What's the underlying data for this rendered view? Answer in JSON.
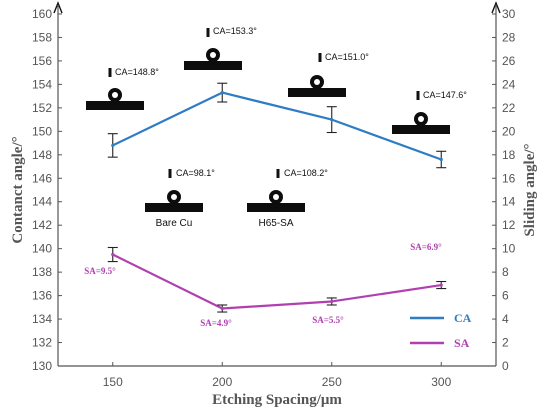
{
  "chart_data": {
    "type": "line",
    "x": [
      150,
      200,
      250,
      300
    ],
    "xlabel": "Etching Spacing/μm",
    "ylabel_left": "Contanct angle/°",
    "ylabel_right": "Sliding angle/°",
    "xlim": [
      125,
      325
    ],
    "ylim_left": [
      130,
      160
    ],
    "ylim_right": [
      0,
      30
    ],
    "yticks_left": [
      130,
      132,
      134,
      136,
      138,
      140,
      142,
      144,
      146,
      148,
      150,
      152,
      154,
      156,
      158,
      160
    ],
    "yticks_right": [
      0,
      2,
      4,
      6,
      8,
      10,
      12,
      14,
      16,
      18,
      20,
      22,
      24,
      26,
      28,
      30
    ],
    "xticks": [
      150,
      200,
      250,
      300
    ],
    "grid": false,
    "legend_position": "bottom-right",
    "series": [
      {
        "name": "CA",
        "axis": "left",
        "color": "#2e7cc4",
        "values": [
          148.8,
          153.3,
          151.0,
          147.6
        ],
        "error": [
          1.0,
          0.8,
          1.1,
          0.7
        ],
        "labels": [
          "CA=148.8°",
          "CA=153.3°",
          "CA=151.0°",
          "CA=147.6°"
        ]
      },
      {
        "name": "SA",
        "axis": "right",
        "color": "#b040b0",
        "values": [
          9.5,
          4.9,
          5.5,
          6.9
        ],
        "error": [
          0.6,
          0.3,
          0.3,
          0.3
        ],
        "labels": [
          "SA=9.5°",
          "SA=4.9°",
          "SA=5.5°",
          "SA=6.9°"
        ]
      }
    ],
    "reference_samples": [
      {
        "name": "Bare Cu",
        "ca_label": "CA=98.1°"
      },
      {
        "name": "H65-SA",
        "ca_label": "CA=108.2°"
      }
    ]
  }
}
